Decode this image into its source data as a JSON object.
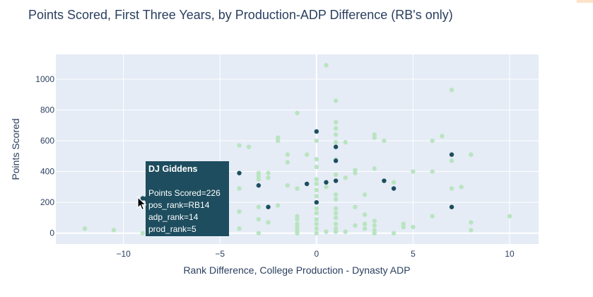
{
  "chart_data": {
    "type": "scatter",
    "title": "Points Scored, First Three Years, by Production-ADP Difference (RB's only)",
    "xlabel": "Rank Difference, College Production - Dynasty ADP",
    "ylabel": "Points Scored",
    "xlim": [
      -13.5,
      11.5
    ],
    "ylim": [
      -70,
      1160
    ],
    "xticks": [
      {
        "v": -10,
        "label": "−10"
      },
      {
        "v": -5,
        "label": "−5"
      },
      {
        "v": 0,
        "label": "0"
      },
      {
        "v": 5,
        "label": "5"
      },
      {
        "v": 10,
        "label": "10"
      }
    ],
    "yticks": [
      0,
      200,
      400,
      600,
      800,
      1000
    ],
    "grid": true,
    "colors": {
      "plot_bg": "#e5ecf6",
      "grid": "#ffffff",
      "light": "#b9e4c0",
      "dark": "#1d4d5e"
    },
    "series": [
      {
        "color": "#b9e4c0",
        "points": [
          [
            -12,
            30
          ],
          [
            -10.5,
            20
          ],
          [
            -9,
            0
          ],
          [
            -4,
            30
          ],
          [
            -4,
            140
          ],
          [
            -4,
            290
          ],
          [
            -4,
            570
          ],
          [
            -3.5,
            560
          ],
          [
            -3,
            0
          ],
          [
            -3,
            90
          ],
          [
            -3,
            170
          ],
          [
            -3,
            350
          ],
          [
            -3,
            370
          ],
          [
            -3,
            390
          ],
          [
            -2.5,
            70
          ],
          [
            -2.5,
            170
          ],
          [
            -2.5,
            360
          ],
          [
            -2.5,
            390
          ],
          [
            -2,
            180
          ],
          [
            -2,
            600
          ],
          [
            -2,
            620
          ],
          [
            -1.5,
            310
          ],
          [
            -1.5,
            460
          ],
          [
            -1.5,
            510
          ],
          [
            -1,
            0
          ],
          [
            -1,
            20
          ],
          [
            -1,
            40
          ],
          [
            -1,
            60
          ],
          [
            -1,
            90
          ],
          [
            -1,
            110
          ],
          [
            -1,
            290
          ],
          [
            -1,
            780
          ],
          [
            -0.5,
            320
          ],
          [
            -0.5,
            510
          ],
          [
            0,
            0
          ],
          [
            0,
            30
          ],
          [
            0,
            60
          ],
          [
            0,
            90
          ],
          [
            0,
            130
          ],
          [
            0,
            160
          ],
          [
            0,
            240
          ],
          [
            0,
            280
          ],
          [
            0,
            320
          ],
          [
            0,
            350
          ],
          [
            0,
            430
          ],
          [
            0,
            480
          ],
          [
            0,
            600
          ],
          [
            0.5,
            10
          ],
          [
            0.5,
            300
          ],
          [
            0.5,
            1090
          ],
          [
            1,
            10
          ],
          [
            1,
            30
          ],
          [
            1,
            60
          ],
          [
            1,
            100
          ],
          [
            1,
            130
          ],
          [
            1,
            160
          ],
          [
            1,
            220
          ],
          [
            1,
            250
          ],
          [
            1,
            380
          ],
          [
            1,
            480
          ],
          [
            1,
            590
          ],
          [
            1,
            640
          ],
          [
            1,
            680
          ],
          [
            1,
            720
          ],
          [
            1,
            860
          ],
          [
            1.5,
            10
          ],
          [
            1.5,
            360
          ],
          [
            1.5,
            590
          ],
          [
            2,
            50
          ],
          [
            2,
            170
          ],
          [
            2,
            390
          ],
          [
            2,
            410
          ],
          [
            2.5,
            30
          ],
          [
            2.5,
            60
          ],
          [
            2.5,
            120
          ],
          [
            2.5,
            250
          ],
          [
            3,
            0
          ],
          [
            3,
            20
          ],
          [
            3,
            50
          ],
          [
            3,
            80
          ],
          [
            3,
            420
          ],
          [
            3,
            620
          ],
          [
            3,
            640
          ],
          [
            3.5,
            600
          ],
          [
            4,
            0
          ],
          [
            4,
            330
          ],
          [
            4.5,
            40
          ],
          [
            4.5,
            60
          ],
          [
            5,
            40
          ],
          [
            5,
            400
          ],
          [
            6,
            110
          ],
          [
            6,
            400
          ],
          [
            6,
            600
          ],
          [
            6.5,
            630
          ],
          [
            7,
            170
          ],
          [
            7,
            290
          ],
          [
            7,
            470
          ],
          [
            7,
            930
          ],
          [
            7.5,
            300
          ],
          [
            8,
            20
          ],
          [
            8,
            70
          ],
          [
            8,
            510
          ],
          [
            10,
            110
          ]
        ]
      },
      {
        "color": "#1d4d5e",
        "points": [
          [
            -9,
            226
          ],
          [
            -4,
            390
          ],
          [
            -3,
            310
          ],
          [
            -2.5,
            170
          ],
          [
            -0.5,
            320
          ],
          [
            0,
            200
          ],
          [
            0,
            660
          ],
          [
            0.5,
            330
          ],
          [
            1,
            340
          ],
          [
            1,
            470
          ],
          [
            1,
            560
          ],
          [
            3.5,
            340
          ],
          [
            4,
            290
          ],
          [
            7,
            170
          ],
          [
            7,
            510
          ]
        ]
      }
    ]
  },
  "tooltip": {
    "name": "DJ Giddens",
    "points_scored": "Points Scored=226",
    "pos_rank": "pos_rank=RB14",
    "adp_rank": "adp_rank=14",
    "prod_rank": "prod_rank=5"
  }
}
